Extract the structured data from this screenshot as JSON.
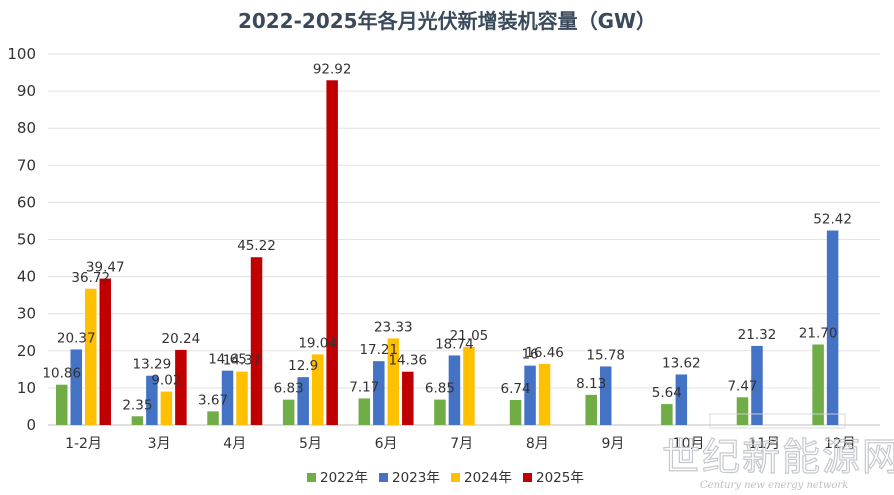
{
  "chart_data": {
    "type": "bar",
    "title": "2022-2025年各月光伏新增装机容量（GW）",
    "categories": [
      "1-2月",
      "3月",
      "4月",
      "5月",
      "6月",
      "7月",
      "8月",
      "9月",
      "10月",
      "11月",
      "12月"
    ],
    "series": [
      {
        "name": "2022年",
        "color": "#70ad47",
        "values": [
          10.86,
          2.35,
          3.67,
          6.83,
          7.17,
          6.85,
          6.74,
          8.13,
          5.64,
          7.47,
          21.7
        ]
      },
      {
        "name": "2023年",
        "color": "#4472c4",
        "values": [
          20.37,
          13.29,
          14.65,
          12.9,
          17.21,
          18.74,
          16,
          15.78,
          13.62,
          21.32,
          52.42
        ]
      },
      {
        "name": "2024年",
        "color": "#ffc000",
        "values": [
          36.72,
          9.02,
          14.37,
          19.04,
          23.33,
          21.05,
          16.46,
          null,
          null,
          null,
          null
        ]
      },
      {
        "name": "2025年",
        "color": "#c00000",
        "values": [
          39.47,
          20.24,
          45.22,
          92.92,
          14.36,
          null,
          null,
          null,
          null,
          null,
          null
        ]
      }
    ],
    "data_labels": [
      [
        "10.86",
        "2.35",
        "3.67",
        "6.83",
        "7.17",
        "6.85",
        "6.74",
        "8.13",
        "5.64",
        "7.47",
        "21.70"
      ],
      [
        "20.37",
        "13.29",
        "14.65",
        "12.9",
        "17.21",
        "18.74",
        "16",
        "15.78",
        "13.62",
        "21.32",
        "52.42"
      ],
      [
        "36.72",
        "9.02",
        "14.37",
        "19.04",
        "23.33",
        "21.05",
        "16.46",
        null,
        null,
        null,
        null
      ],
      [
        "39.47",
        "20.24",
        "45.22",
        "92.92",
        "14.36",
        null,
        null,
        null,
        null,
        null,
        null
      ]
    ],
    "ylim": [
      0,
      100
    ],
    "yticks": [
      0,
      10,
      20,
      30,
      40,
      50,
      60,
      70,
      80,
      90,
      100
    ],
    "grid": true,
    "legend_position": "bottom"
  },
  "watermark": {
    "logo_text": "世纪新能源网",
    "logo_subtext": "Century new energy network"
  }
}
